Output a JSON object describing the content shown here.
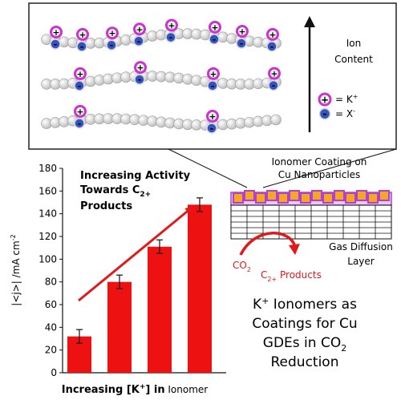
{
  "ion_panel": {
    "axis_label_line1": "Ion",
    "axis_label_line2": "Content",
    "legend_k_symbol": "+",
    "legend_k_label": "= K",
    "legend_k_sup": "+",
    "legend_x_symbol": "-",
    "legend_x_label": "= X",
    "legend_x_sup": "-",
    "plus_symbol": "+",
    "minus_symbol": "-"
  },
  "gde": {
    "coating_label_line1": "Ionomer Coating on",
    "coating_label_line2": "Cu Nanoparticles",
    "layer_label_line1": "Gas Diffusion",
    "layer_label_line2": "Layer",
    "co2_label": "CO",
    "co2_sub": "2",
    "product_label_pre": "C",
    "product_sub": "2+",
    "product_label_post": " Products"
  },
  "headline": {
    "line1_pre": "K",
    "line1_sup": "+",
    "line1_post": " Ionomers as",
    "line2": "Coatings for Cu",
    "line3_pre": "GDEs in CO",
    "line3_sub": "2",
    "line4": "Reduction"
  },
  "colors": {
    "bar": "#ee1111",
    "arrow": "#e01a1a",
    "cation_ring": "#cc33cc",
    "anion_fill": "#3355bb",
    "coating_orange": "#f5a623",
    "coating_purple": "#b040d0"
  },
  "chart_data": {
    "type": "bar",
    "categories": [
      "",
      "",
      "",
      ""
    ],
    "values": [
      32,
      80,
      111,
      148
    ],
    "errors": [
      6,
      6,
      6,
      6
    ],
    "ylabel_main": "|<j>| /mA cm",
    "ylabel_sup": "-2",
    "xlabel_main": "Increasing [K",
    "xlabel_sup": "+",
    "xlabel_mid": "] in",
    "xlabel_end": " Ionomer",
    "ylim": [
      0,
      180
    ],
    "yticks": [
      "0",
      "20",
      "40",
      "60",
      "80",
      "100",
      "120",
      "140",
      "160",
      "180"
    ],
    "annotation_line1": "Increasing Activity",
    "annotation_line2_pre": "Towards C",
    "annotation_line2_sub": "2+",
    "annotation_line3": "Products"
  }
}
